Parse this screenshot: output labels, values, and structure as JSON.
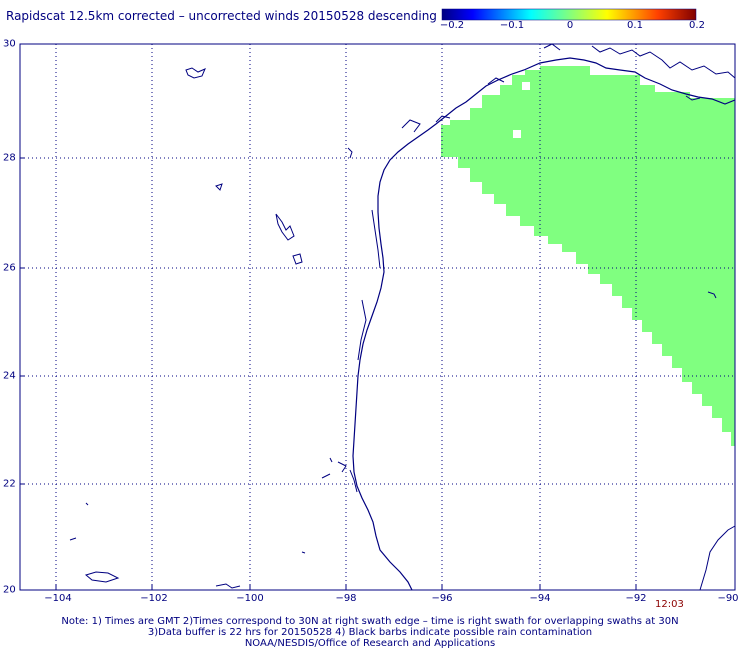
{
  "title": "Rapidscat 12.5km corrected – uncorrected winds 20150528 descending",
  "colorbar": {
    "ticks": [
      "−0.2",
      "−0.1",
      "0",
      "0.1",
      "0.2"
    ]
  },
  "axes": {
    "lat_labels": [
      "30",
      "28",
      "26",
      "24",
      "22",
      "20"
    ],
    "lon_labels": [
      "−104",
      "−102",
      "−100",
      "−98",
      "−96",
      "−94",
      "−92",
      "−90"
    ]
  },
  "swath_time": "12:03",
  "notes": {
    "line1": "Note: 1) Times are GMT 2)Times correspond to 30N at right swath edge – time is right swath for overlapping swaths at 30N",
    "line2": "3)Data buffer is 22 hrs for 20150528 4) Black barbs indicate possible rain contamination",
    "line3": "NOAA/NESDIS/Office of Research and Applications"
  },
  "colors": {
    "swath_fill": "#80ff80",
    "coastline": "#000080",
    "label_text": "#000080"
  }
}
